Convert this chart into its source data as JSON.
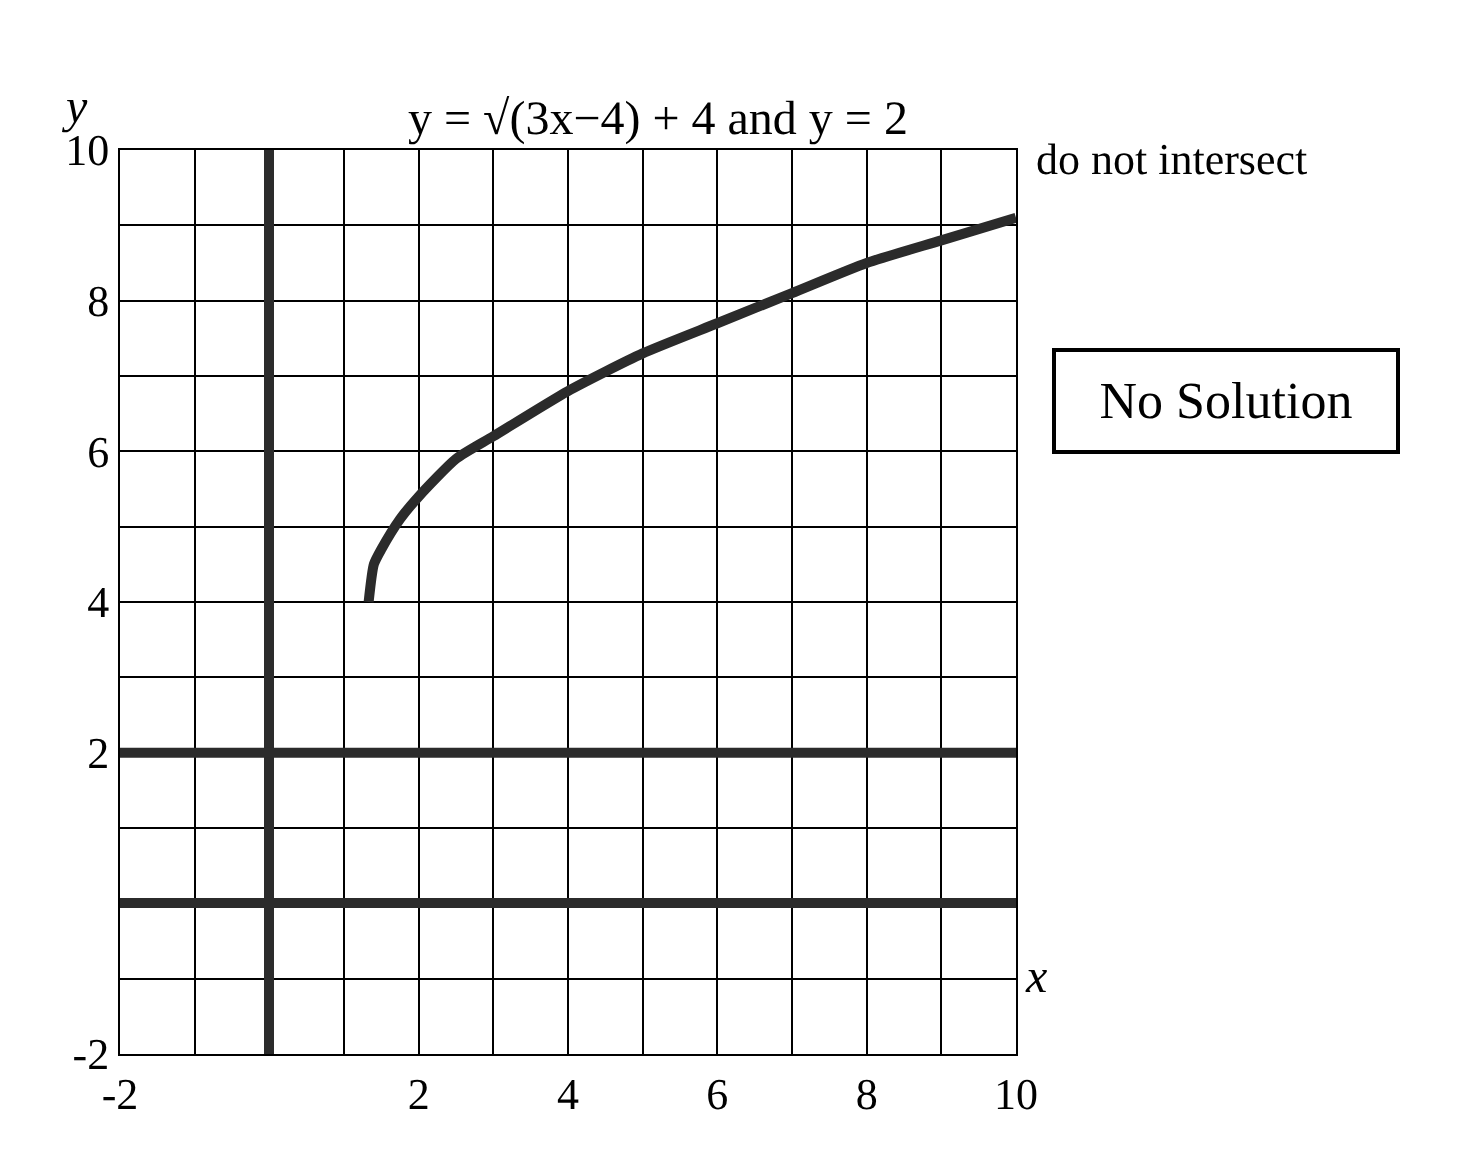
{
  "chart_data": {
    "type": "line",
    "xlabel": "x",
    "ylabel": "y",
    "series": [
      {
        "color": "#2b2b2b",
        "x": [
          1.33,
          1.4,
          1.5,
          1.75,
          2,
          2.5,
          3,
          4,
          5,
          6,
          7,
          8,
          9,
          10
        ],
        "values": [
          4,
          4.5,
          4.7,
          5.1,
          5.4,
          5.9,
          6.2,
          6.8,
          7.3,
          7.7,
          8.1,
          8.5,
          8.8,
          9.1
        ]
      },
      {
        "color": "#2b2b2b",
        "x": [
          -2,
          10
        ],
        "values": [
          2,
          2
        ]
      }
    ],
    "xlim": [
      -2,
      10
    ],
    "ylim": [
      -2,
      10
    ],
    "xticks": [
      -2,
      {
        "value": -1,
        "label": null
      },
      {
        "value": 0,
        "label": null
      },
      {
        "value": 1,
        "label": null
      },
      2,
      {
        "value": 3,
        "label": null
      },
      4,
      {
        "value": 5,
        "label": null
      },
      6,
      {
        "value": 7,
        "label": null
      },
      8,
      {
        "value": 9,
        "label": null
      },
      10
    ],
    "yticks": [
      -2,
      {
        "value": -1,
        "label": null
      },
      {
        "value": 0,
        "label": null
      },
      {
        "value": 1,
        "label": null
      },
      2,
      {
        "value": 3,
        "label": null
      },
      4,
      {
        "value": 5,
        "label": null
      },
      6,
      {
        "value": 7,
        "label": null
      },
      8,
      {
        "value": 9,
        "label": null
      },
      10
    ],
    "grid": true,
    "marker": "none",
    "line_style": "solid",
    "annotations": [
      "y = √(3x−4) + 4 and y = 2",
      "do not intersect",
      "No Solution"
    ]
  }
}
